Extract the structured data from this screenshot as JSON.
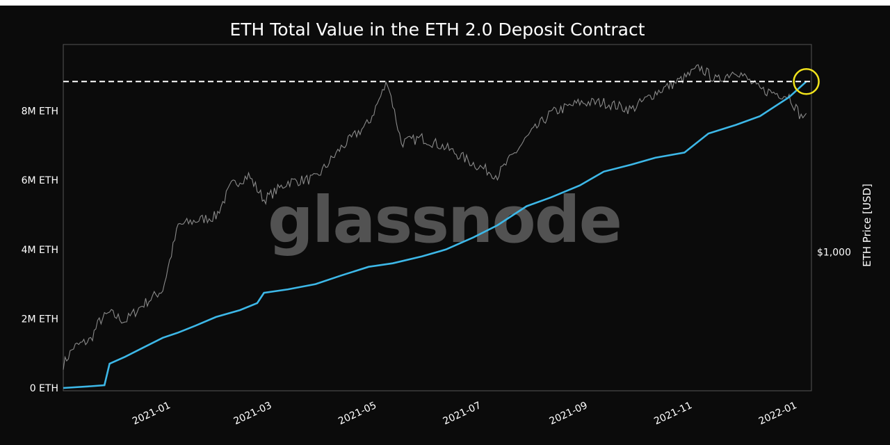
{
  "chart_data": {
    "type": "line",
    "title": "ETH Total Value in the ETH 2.0 Deposit Contract",
    "watermark": "glassnode",
    "ylabel_left": "",
    "ylabel_right": "ETH Price [USD]",
    "left_axis": {
      "range": [
        0,
        9800000
      ],
      "ticks": [
        {
          "value": 0,
          "label": "0 ETH"
        },
        {
          "value": 2000000,
          "label": "2M ETH"
        },
        {
          "value": 4000000,
          "label": "4M ETH"
        },
        {
          "value": 6000000,
          "label": "6M ETH"
        },
        {
          "value": 8000000,
          "label": "8M ETH"
        }
      ]
    },
    "right_axis": {
      "scale": "log",
      "range": [
        320,
        5500
      ],
      "ticks": [
        {
          "value": 1000,
          "label": "$1,000"
        }
      ]
    },
    "x_axis": {
      "range": [
        "2020-11-04",
        "2022-01-14"
      ],
      "ticks": [
        {
          "value": "2021-01-01",
          "label": "2021-01"
        },
        {
          "value": "2021-03-01",
          "label": "2021-03"
        },
        {
          "value": "2021-05-01",
          "label": "2021-05"
        },
        {
          "value": "2021-07-01",
          "label": "2021-07"
        },
        {
          "value": "2021-09-01",
          "label": "2021-09"
        },
        {
          "value": "2021-11-01",
          "label": "2021-11"
        },
        {
          "value": "2022-01-01",
          "label": "2022-01"
        }
      ]
    },
    "grid": false,
    "colors": {
      "background": "#0b0b0b",
      "deposit_line": "#3db8e8",
      "price_line": "#8a8a8a",
      "reference_line": "#ffffff",
      "highlight_circle": "#f2e41c",
      "spine": "#555555"
    },
    "reference_line": {
      "axis": "left",
      "value": 8850000,
      "style": "dashed"
    },
    "highlight": {
      "x": "2022-01-11",
      "y": 8850000,
      "shape": "circle"
    },
    "series": [
      {
        "axis": "left",
        "role": "deposit",
        "points": [
          [
            "2020-11-04",
            0
          ],
          [
            "2020-11-20",
            50000
          ],
          [
            "2020-11-28",
            80000
          ],
          [
            "2020-12-01",
            700000
          ],
          [
            "2020-12-10",
            900000
          ],
          [
            "2020-12-20",
            1150000
          ],
          [
            "2021-01-01",
            1450000
          ],
          [
            "2021-01-10",
            1600000
          ],
          [
            "2021-01-20",
            1800000
          ],
          [
            "2021-02-01",
            2050000
          ],
          [
            "2021-02-15",
            2250000
          ],
          [
            "2021-02-25",
            2450000
          ],
          [
            "2021-03-01",
            2750000
          ],
          [
            "2021-03-15",
            2850000
          ],
          [
            "2021-03-31",
            3000000
          ],
          [
            "2021-04-15",
            3250000
          ],
          [
            "2021-05-01",
            3500000
          ],
          [
            "2021-05-15",
            3600000
          ],
          [
            "2021-06-01",
            3800000
          ],
          [
            "2021-06-15",
            4000000
          ],
          [
            "2021-07-01",
            4350000
          ],
          [
            "2021-07-15",
            4700000
          ],
          [
            "2021-08-01",
            5250000
          ],
          [
            "2021-08-15",
            5500000
          ],
          [
            "2021-09-01",
            5850000
          ],
          [
            "2021-09-15",
            6250000
          ],
          [
            "2021-10-01",
            6450000
          ],
          [
            "2021-10-15",
            6650000
          ],
          [
            "2021-11-01",
            6800000
          ],
          [
            "2021-11-15",
            7350000
          ],
          [
            "2021-12-01",
            7600000
          ],
          [
            "2021-12-15",
            7850000
          ],
          [
            "2022-01-01",
            8400000
          ],
          [
            "2022-01-11",
            8850000
          ]
        ]
      },
      {
        "axis": "right",
        "role": "price",
        "points": [
          [
            "2020-11-04",
            390
          ],
          [
            "2020-11-10",
            450
          ],
          [
            "2020-11-20",
            480
          ],
          [
            "2020-11-25",
            560
          ],
          [
            "2020-12-01",
            600
          ],
          [
            "2020-12-10",
            560
          ],
          [
            "2020-12-20",
            640
          ],
          [
            "2021-01-01",
            730
          ],
          [
            "2021-01-10",
            1250
          ],
          [
            "2021-01-20",
            1300
          ],
          [
            "2021-02-01",
            1350
          ],
          [
            "2021-02-10",
            1750
          ],
          [
            "2021-02-20",
            1900
          ],
          [
            "2021-03-01",
            1550
          ],
          [
            "2021-03-15",
            1800
          ],
          [
            "2021-03-31",
            1850
          ],
          [
            "2021-04-15",
            2400
          ],
          [
            "2021-05-01",
            2950
          ],
          [
            "2021-05-12",
            4200
          ],
          [
            "2021-05-20",
            2500
          ],
          [
            "2021-06-01",
            2600
          ],
          [
            "2021-06-15",
            2400
          ],
          [
            "2021-07-01",
            2100
          ],
          [
            "2021-07-15",
            1900
          ],
          [
            "2021-08-01",
            2600
          ],
          [
            "2021-08-15",
            3200
          ],
          [
            "2021-09-01",
            3500
          ],
          [
            "2021-09-15",
            3500
          ],
          [
            "2021-10-01",
            3300
          ],
          [
            "2021-10-15",
            3800
          ],
          [
            "2021-11-01",
            4300
          ],
          [
            "2021-11-10",
            4700
          ],
          [
            "2021-11-20",
            4200
          ],
          [
            "2021-12-01",
            4600
          ],
          [
            "2021-12-15",
            3900
          ],
          [
            "2022-01-01",
            3700
          ],
          [
            "2022-01-08",
            3100
          ],
          [
            "2022-01-11",
            3200
          ]
        ]
      }
    ]
  }
}
